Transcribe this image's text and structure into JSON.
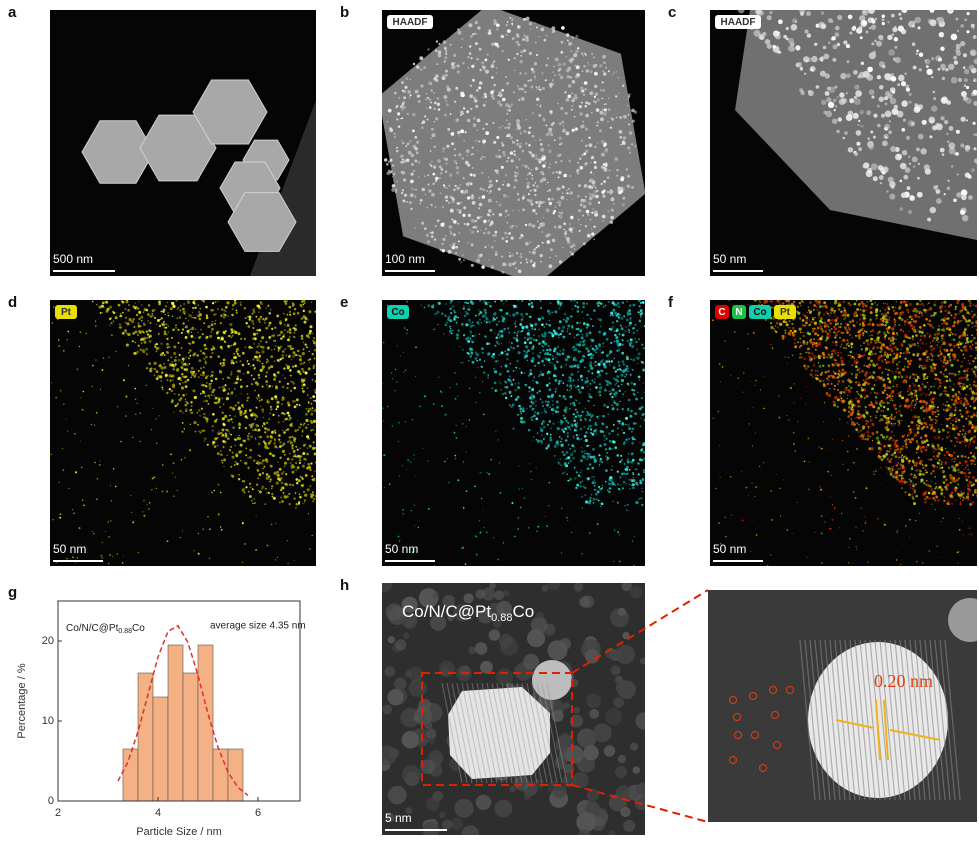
{
  "panels": [
    {
      "label": "a",
      "tags": [],
      "scale_bar": "500 nm"
    },
    {
      "label": "b",
      "tags": [
        "HAADF"
      ],
      "scale_bar": "100 nm"
    },
    {
      "label": "c",
      "tags": [
        "HAADF"
      ],
      "scale_bar": "50 nm"
    },
    {
      "label": "d",
      "tags": [
        "Pt"
      ],
      "scale_bar": "50 nm"
    },
    {
      "label": "e",
      "tags": [
        "Co"
      ],
      "scale_bar": "50 nm"
    },
    {
      "label": "f",
      "tags": [
        "C",
        "N",
        "Co",
        "Pt"
      ],
      "scale_bar": "50 nm"
    },
    {
      "label": "h",
      "tags": [],
      "scale_bar": "5 nm",
      "title": {
        "text": "Co/N/C@Pt",
        "sub": "0.88",
        "tail": "Co"
      },
      "annotation": "0.20 nm"
    }
  ],
  "chart_data": {
    "type": "histogram",
    "panel_label": "g",
    "inset_label": {
      "text": "Co/N/C@Pt",
      "sub": "0.88",
      "tail": "Co"
    },
    "note": "average size 4.35 nm",
    "xlabel": "Particle Size / nm",
    "ylabel": "Percentage / %",
    "bins": [
      3.3,
      3.6,
      3.9,
      4.2,
      4.5,
      4.8,
      5.1,
      5.4,
      5.7
    ],
    "values": [
      6.5,
      16,
      13,
      19.5,
      16,
      19.5,
      6.5,
      6.5
    ],
    "color": "#f4b183",
    "curve": {
      "color": "#e0302a",
      "x": [
        3.2,
        3.4,
        3.6,
        3.8,
        4.0,
        4.2,
        4.4,
        4.6,
        4.8,
        5.0,
        5.2,
        5.4,
        5.6,
        5.8
      ],
      "values": [
        2.5,
        4.9,
        8.7,
        13.3,
        18.0,
        21.2,
        21.9,
        19.8,
        15.7,
        10.9,
        6.7,
        3.6,
        1.7,
        0.7
      ]
    },
    "xlim": [
      2,
      6.84
    ],
    "ylim": [
      0,
      25
    ],
    "xticks": [
      2,
      4,
      6
    ],
    "yticks": [
      0,
      10,
      20
    ]
  }
}
